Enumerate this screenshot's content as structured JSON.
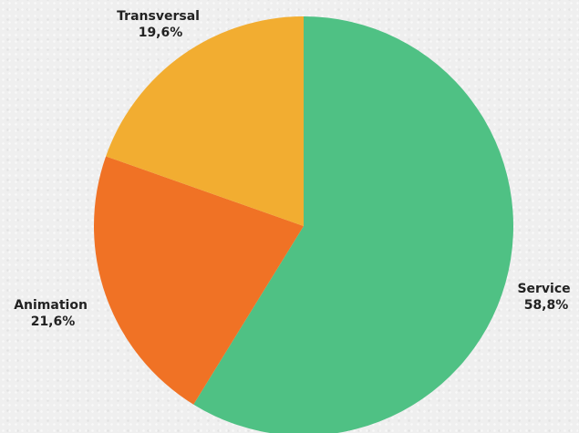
{
  "chart_data": {
    "type": "pie",
    "start_angle_deg": 0,
    "direction": "clockwise",
    "slices": [
      {
        "label": "Service",
        "value_text": "58,8%",
        "value": 58.8,
        "color": "#4fc184"
      },
      {
        "label": "Animation",
        "value_text": "21,6%",
        "value": 21.6,
        "color": "#f07225"
      },
      {
        "label": "Transversal",
        "value_text": "19,6%",
        "value": 19.6,
        "color": "#f2ad31"
      }
    ]
  }
}
